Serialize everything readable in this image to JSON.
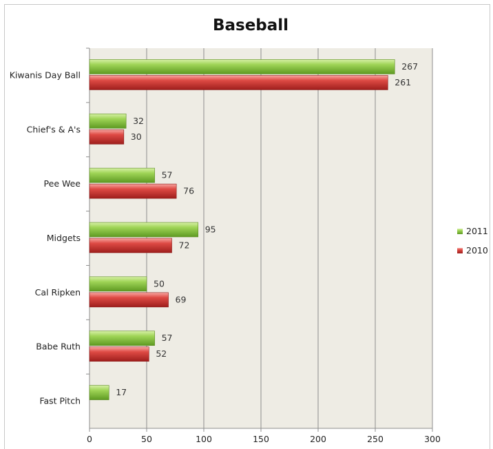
{
  "chart_data": {
    "type": "bar",
    "orientation": "horizontal",
    "title": "Baseball",
    "categories": [
      "Kiwanis Day Ball",
      "Chief's & A's",
      "Pee Wee",
      "Midgets",
      "Cal Ripken",
      "Babe Ruth",
      "Fast Pitch"
    ],
    "series": [
      {
        "name": "2011",
        "values": [
          267,
          32,
          57,
          95,
          50,
          57,
          17
        ],
        "color": "#8cc63f"
      },
      {
        "name": "2010",
        "values": [
          261,
          30,
          76,
          72,
          69,
          52,
          null
        ],
        "color": "#d94040"
      }
    ],
    "xlim": [
      0,
      300
    ],
    "xticks": [
      0,
      50,
      100,
      150,
      200,
      250,
      300
    ],
    "grid": true,
    "legend": "right",
    "plot_background": "#eeece4"
  }
}
